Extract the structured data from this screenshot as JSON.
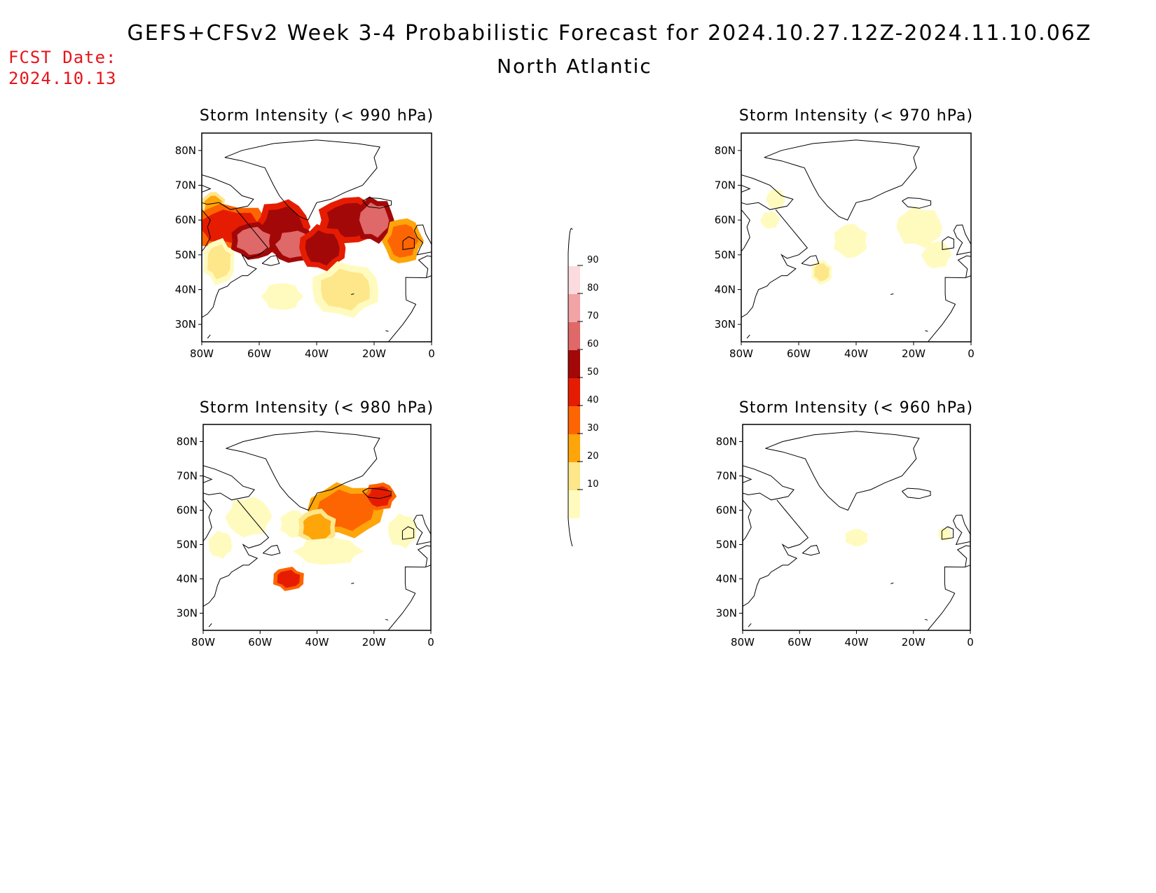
{
  "header": {
    "title": "GEFS+CFSv2 Week 3-4 Probabilistic Forecast for 2024.10.27.12Z-2024.11.10.06Z",
    "subtitle": "North Atlantic",
    "fcst_label": "FCST Date:",
    "fcst_value": "2024.10.13"
  },
  "colorbar": {
    "levels": [
      "10",
      "20",
      "30",
      "40",
      "50",
      "60",
      "70",
      "80",
      "90"
    ],
    "colors": [
      "#fffbbf",
      "#fee68a",
      "#fea50a",
      "#fd6502",
      "#e61c02",
      "#a30808",
      "#df6868",
      "#f2a3a5",
      "#fbdbdd",
      "#ffffff"
    ]
  },
  "axes": {
    "lon_ticks": [
      "80W",
      "60W",
      "40W",
      "20W",
      "0"
    ],
    "lat_ticks": [
      "80N",
      "70N",
      "60N",
      "50N",
      "40N",
      "30N"
    ]
  },
  "panels": [
    {
      "id": "p990",
      "title": "Storm Intensity (< 990 hPa)",
      "blobs": [
        {
          "lon": -76,
          "lat": 64,
          "w": 4,
          "h": 4,
          "level": 3
        },
        {
          "lon": -70,
          "lat": 58,
          "w": 20,
          "h": 8,
          "level": 5
        },
        {
          "lon": -52,
          "lat": 58,
          "w": 12,
          "h": 10,
          "level": 6
        },
        {
          "lon": -28,
          "lat": 60,
          "w": 16,
          "h": 8,
          "level": 6
        },
        {
          "lon": -20,
          "lat": 60,
          "w": 8,
          "h": 8,
          "level": 7
        },
        {
          "lon": -48,
          "lat": 53,
          "w": 10,
          "h": 6,
          "level": 7
        },
        {
          "lon": -62,
          "lat": 54,
          "w": 10,
          "h": 6,
          "level": 7
        },
        {
          "lon": -38,
          "lat": 52,
          "w": 10,
          "h": 8,
          "level": 6
        },
        {
          "lon": -10,
          "lat": 54,
          "w": 8,
          "h": 8,
          "level": 4
        },
        {
          "lon": -74,
          "lat": 48,
          "w": 6,
          "h": 8,
          "level": 2
        },
        {
          "lon": -30,
          "lat": 40,
          "w": 16,
          "h": 10,
          "level": 2
        },
        {
          "lon": -52,
          "lat": 38,
          "w": 12,
          "h": 6,
          "level": 1
        }
      ]
    },
    {
      "id": "p970",
      "title": "Storm Intensity (< 970 hPa)",
      "blobs": [
        {
          "lon": -68,
          "lat": 66,
          "w": 4,
          "h": 4,
          "level": 1
        },
        {
          "lon": -70,
          "lat": 60,
          "w": 4,
          "h": 3,
          "level": 1
        },
        {
          "lon": -42,
          "lat": 54,
          "w": 10,
          "h": 8,
          "level": 1
        },
        {
          "lon": -18,
          "lat": 58,
          "w": 14,
          "h": 10,
          "level": 1
        },
        {
          "lon": -12,
          "lat": 50,
          "w": 8,
          "h": 6,
          "level": 1
        },
        {
          "lon": -52,
          "lat": 45,
          "w": 3,
          "h": 3,
          "level": 2
        }
      ]
    },
    {
      "id": "p980",
      "title": "Storm Intensity (< 980 hPa)",
      "blobs": [
        {
          "lon": -64,
          "lat": 58,
          "w": 14,
          "h": 10,
          "level": 1
        },
        {
          "lon": -48,
          "lat": 56,
          "w": 8,
          "h": 6,
          "level": 1
        },
        {
          "lon": -30,
          "lat": 60,
          "w": 18,
          "h": 10,
          "level": 4
        },
        {
          "lon": -18,
          "lat": 64,
          "w": 6,
          "h": 4,
          "level": 5
        },
        {
          "lon": -40,
          "lat": 55,
          "w": 8,
          "h": 6,
          "level": 3
        },
        {
          "lon": -10,
          "lat": 54,
          "w": 8,
          "h": 8,
          "level": 1
        },
        {
          "lon": -36,
          "lat": 48,
          "w": 22,
          "h": 6,
          "level": 1
        },
        {
          "lon": -50,
          "lat": 40,
          "w": 6,
          "h": 3,
          "level": 5
        },
        {
          "lon": -74,
          "lat": 50,
          "w": 6,
          "h": 6,
          "level": 1
        }
      ]
    },
    {
      "id": "p960",
      "title": "Storm Intensity (< 960 hPa)",
      "blobs": [
        {
          "lon": -40,
          "lat": 52,
          "w": 6,
          "h": 3,
          "level": 1
        },
        {
          "lon": -9,
          "lat": 53,
          "w": 2,
          "h": 2,
          "level": 1
        }
      ]
    }
  ]
}
